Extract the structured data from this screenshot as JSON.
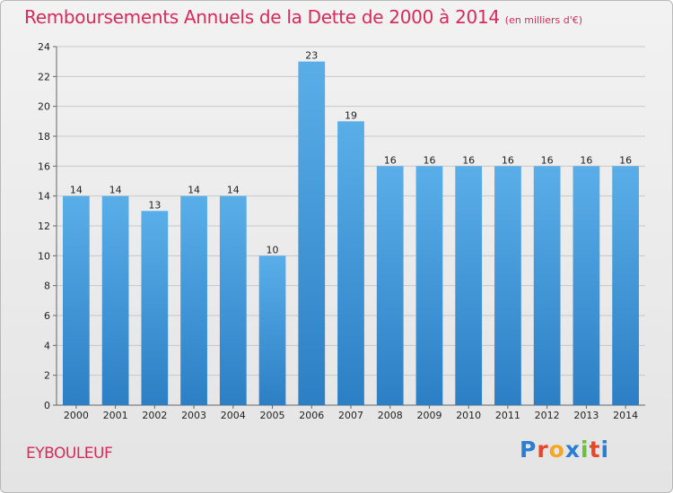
{
  "header": {
    "title": "Remboursements Annuels de la Dette de 2000 à 2014",
    "subtitle": "(en milliers d'€)"
  },
  "footer": {
    "place": "EYBOULEUF",
    "logo": "Proxiti",
    "logo_colors": [
      "#2a7fd4",
      "#e8462b",
      "#f5a623",
      "#2a7fd4",
      "#6cbf3a",
      "#e8462b",
      "#2a7fd4"
    ]
  },
  "chart_data": {
    "type": "bar",
    "categories": [
      "2000",
      "2001",
      "2002",
      "2003",
      "2004",
      "2005",
      "2006",
      "2007",
      "2008",
      "2009",
      "2010",
      "2011",
      "2012",
      "2013",
      "2014"
    ],
    "values": [
      14,
      14,
      13,
      14,
      14,
      10,
      23,
      19,
      16,
      16,
      16,
      16,
      16,
      16,
      16
    ],
    "data_labels": [
      "14",
      "14",
      "13",
      "14",
      "14",
      "10",
      "23",
      "19",
      "16",
      "16",
      "16",
      "16",
      "16",
      "16",
      "16"
    ],
    "title": "Remboursements Annuels de la Dette de 2000 à 2014",
    "ylim": [
      0,
      24
    ],
    "yticks": [
      0,
      2,
      4,
      6,
      8,
      10,
      12,
      14,
      16,
      18,
      20,
      22,
      24
    ],
    "grid": true,
    "bar_color_top": "#5aaee8",
    "bar_color_bottom": "#2c7fc4"
  }
}
